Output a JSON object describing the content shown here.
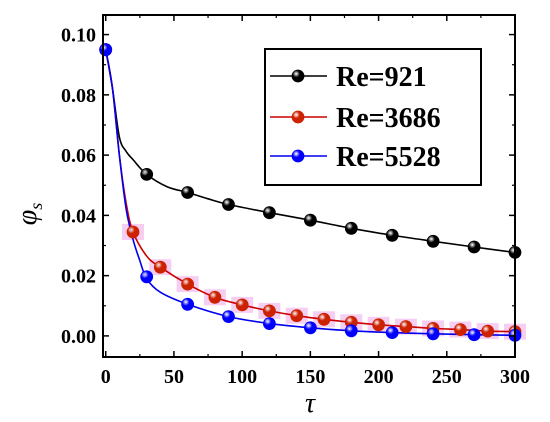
{
  "chart_data": {
    "type": "line",
    "title": "",
    "xlabel": "τ",
    "ylabel": "φ_s",
    "xlim": [
      -2,
      300
    ],
    "ylim": [
      -0.007,
      0.1065
    ],
    "x_ticks": [
      "0",
      "50",
      "100",
      "150",
      "200",
      "250",
      "300"
    ],
    "y_ticks": [
      "0.00",
      "0.02",
      "0.04",
      "0.06",
      "0.08",
      "0.10"
    ],
    "grid": false,
    "legend_position": "top-right",
    "series": [
      {
        "name": "Re=921",
        "color": "#000000",
        "marker_color": "#000000",
        "curve": [
          [
            0,
            0.095
          ],
          [
            5,
            0.082
          ],
          [
            10,
            0.066
          ],
          [
            15,
            0.0612
          ],
          [
            20,
            0.0585
          ],
          [
            30,
            0.0536
          ],
          [
            45,
            0.0495
          ],
          [
            60,
            0.0476
          ],
          [
            75,
            0.0455
          ],
          [
            90,
            0.0436
          ],
          [
            120,
            0.0409
          ],
          [
            150,
            0.0384
          ],
          [
            180,
            0.0357
          ],
          [
            210,
            0.0334
          ],
          [
            240,
            0.0314
          ],
          [
            270,
            0.0295
          ],
          [
            300,
            0.0277
          ]
        ],
        "markers": [
          [
            0,
            0.095
          ],
          [
            30,
            0.0536
          ],
          [
            60,
            0.0476
          ],
          [
            90,
            0.0436
          ],
          [
            120,
            0.0409
          ],
          [
            150,
            0.0384
          ],
          [
            180,
            0.0357
          ],
          [
            210,
            0.0334
          ],
          [
            240,
            0.0314
          ],
          [
            270,
            0.0295
          ],
          [
            300,
            0.0277
          ]
        ]
      },
      {
        "name": "Re=3686",
        "color": "#cc0000",
        "marker_color": "#cc2200",
        "curve": [
          [
            0,
            0.095
          ],
          [
            5,
            0.082
          ],
          [
            10,
            0.06
          ],
          [
            15,
            0.044
          ],
          [
            20,
            0.0345
          ],
          [
            30,
            0.0265
          ],
          [
            40,
            0.0228
          ],
          [
            60,
            0.0172
          ],
          [
            80,
            0.0128
          ],
          [
            100,
            0.0103
          ],
          [
            120,
            0.0083
          ],
          [
            140,
            0.0067
          ],
          [
            160,
            0.0055
          ],
          [
            180,
            0.0045
          ],
          [
            200,
            0.0037
          ],
          [
            220,
            0.0031
          ],
          [
            240,
            0.0025
          ],
          [
            260,
            0.0021
          ],
          [
            280,
            0.0016
          ],
          [
            300,
            0.0014
          ]
        ],
        "markers": [
          [
            0,
            0.095
          ],
          [
            20,
            0.0345
          ],
          [
            40,
            0.0228
          ],
          [
            60,
            0.0172
          ],
          [
            80,
            0.0128
          ],
          [
            100,
            0.0103
          ],
          [
            120,
            0.0083
          ],
          [
            140,
            0.0067
          ],
          [
            160,
            0.0055
          ],
          [
            180,
            0.0045
          ],
          [
            200,
            0.0037
          ],
          [
            220,
            0.0031
          ],
          [
            240,
            0.0025
          ],
          [
            260,
            0.0021
          ],
          [
            280,
            0.0016
          ],
          [
            300,
            0.0014
          ]
        ]
      },
      {
        "name": "Re=5528",
        "color": "#0000ee",
        "marker_color": "#0000ff",
        "curve": [
          [
            0,
            0.095
          ],
          [
            5,
            0.082
          ],
          [
            10,
            0.06
          ],
          [
            15,
            0.042
          ],
          [
            20,
            0.032
          ],
          [
            25,
            0.025
          ],
          [
            30,
            0.019
          ],
          [
            40,
            0.0145
          ],
          [
            60,
            0.0105
          ],
          [
            90,
            0.0064
          ],
          [
            120,
            0.0041
          ],
          [
            150,
            0.0027
          ],
          [
            180,
            0.0017
          ],
          [
            210,
            0.0011
          ],
          [
            240,
            0.0007
          ],
          [
            270,
            0.0004
          ],
          [
            300,
            0.0002
          ]
        ],
        "markers": [
          [
            0,
            0.095
          ],
          [
            30,
            0.0196
          ],
          [
            60,
            0.0105
          ],
          [
            90,
            0.0064
          ],
          [
            120,
            0.0041
          ],
          [
            150,
            0.0027
          ],
          [
            180,
            0.0017
          ],
          [
            210,
            0.0011
          ],
          [
            240,
            0.0007
          ],
          [
            270,
            0.0004
          ],
          [
            300,
            0.0002
          ]
        ]
      }
    ],
    "highlight_color": "#f5c6f0"
  }
}
